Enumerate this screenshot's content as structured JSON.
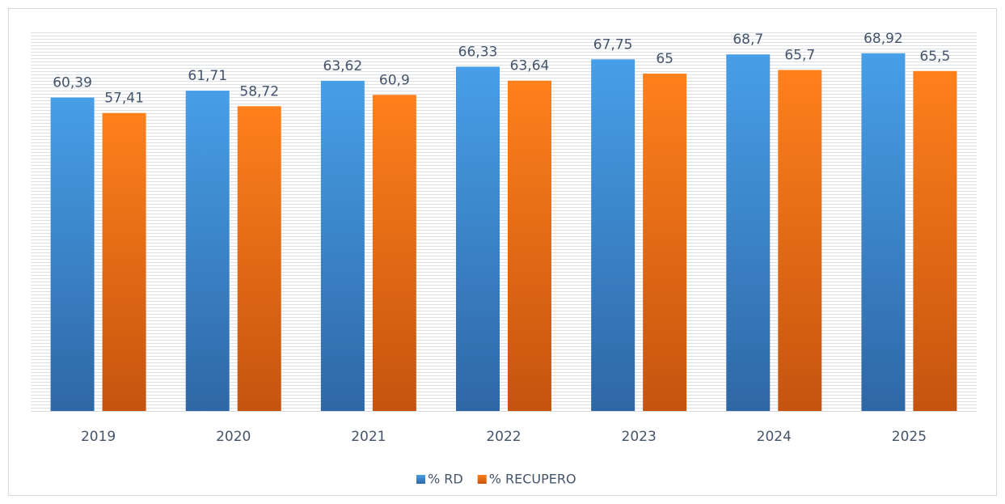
{
  "chart_data": {
    "type": "bar",
    "categories": [
      "2019",
      "2020",
      "2021",
      "2022",
      "2023",
      "2024",
      "2025"
    ],
    "series": [
      {
        "name": "% RD",
        "color": "#3f8fd8",
        "values": [
          60.39,
          61.71,
          63.62,
          66.33,
          67.75,
          68.7,
          68.92
        ],
        "value_labels": [
          "60,39",
          "61,71",
          "63,62",
          "66,33",
          "67,75",
          "68,7",
          "68,92"
        ]
      },
      {
        "name": "% RECUPERO",
        "color": "#f07318",
        "values": [
          57.41,
          58.72,
          60.9,
          63.64,
          65,
          65.7,
          65.5
        ],
        "value_labels": [
          "57,41",
          "58,72",
          "60,9",
          "63,64",
          "65",
          "65,7",
          "65,5"
        ]
      }
    ],
    "ylim": [
      0,
      77
    ],
    "legend": "bottom"
  }
}
